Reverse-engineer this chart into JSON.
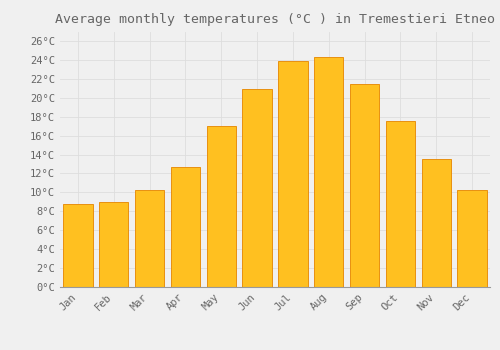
{
  "title": "Average monthly temperatures (°C ) in Tremestieri Etneo",
  "months": [
    "Jan",
    "Feb",
    "Mar",
    "Apr",
    "May",
    "Jun",
    "Jul",
    "Aug",
    "Sep",
    "Oct",
    "Nov",
    "Dec"
  ],
  "temperatures": [
    8.8,
    9.0,
    10.3,
    12.7,
    17.0,
    20.9,
    23.9,
    24.3,
    21.5,
    17.5,
    13.5,
    10.3
  ],
  "bar_color": "#FFC020",
  "bar_edge_color": "#E89010",
  "background_color": "#F0F0F0",
  "grid_color": "#DDDDDD",
  "text_color": "#666666",
  "title_fontsize": 9.5,
  "tick_fontsize": 7.5,
  "ylim": [
    0,
    27
  ],
  "yticks": [
    0,
    2,
    4,
    6,
    8,
    10,
    12,
    14,
    16,
    18,
    20,
    22,
    24,
    26
  ],
  "bar_width": 0.82
}
